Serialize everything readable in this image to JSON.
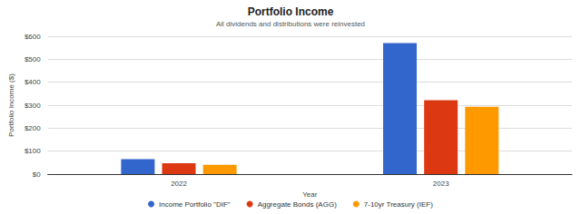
{
  "chart_data": {
    "type": "bar",
    "title": "Portfolio Income",
    "subtitle": "All dividends and distributions were reinvested",
    "x_label": "Year",
    "y_label": "Portfolio Income ($)",
    "categories": [
      "2022",
      "2023"
    ],
    "series": [
      {
        "name": "Income Portfolio \"DIF\"",
        "color": "#3366cc",
        "values": [
          65,
          570
        ]
      },
      {
        "name": "Aggregate Bonds (AGG)",
        "color": "#dc3912",
        "values": [
          47,
          322
        ]
      },
      {
        "name": "7-10yr Treasury (IEF)",
        "color": "#ff9900",
        "values": [
          40,
          293
        ]
      }
    ],
    "ylim": [
      0,
      600
    ],
    "yticks": [
      {
        "value": 0,
        "label": "$0"
      },
      {
        "value": 100,
        "label": "$100"
      },
      {
        "value": 200,
        "label": "$200"
      },
      {
        "value": 300,
        "label": "$300"
      },
      {
        "value": 400,
        "label": "$400"
      },
      {
        "value": 500,
        "label": "$500"
      },
      {
        "value": 600,
        "label": "$600"
      }
    ],
    "grid": true,
    "legend": "bottom"
  }
}
